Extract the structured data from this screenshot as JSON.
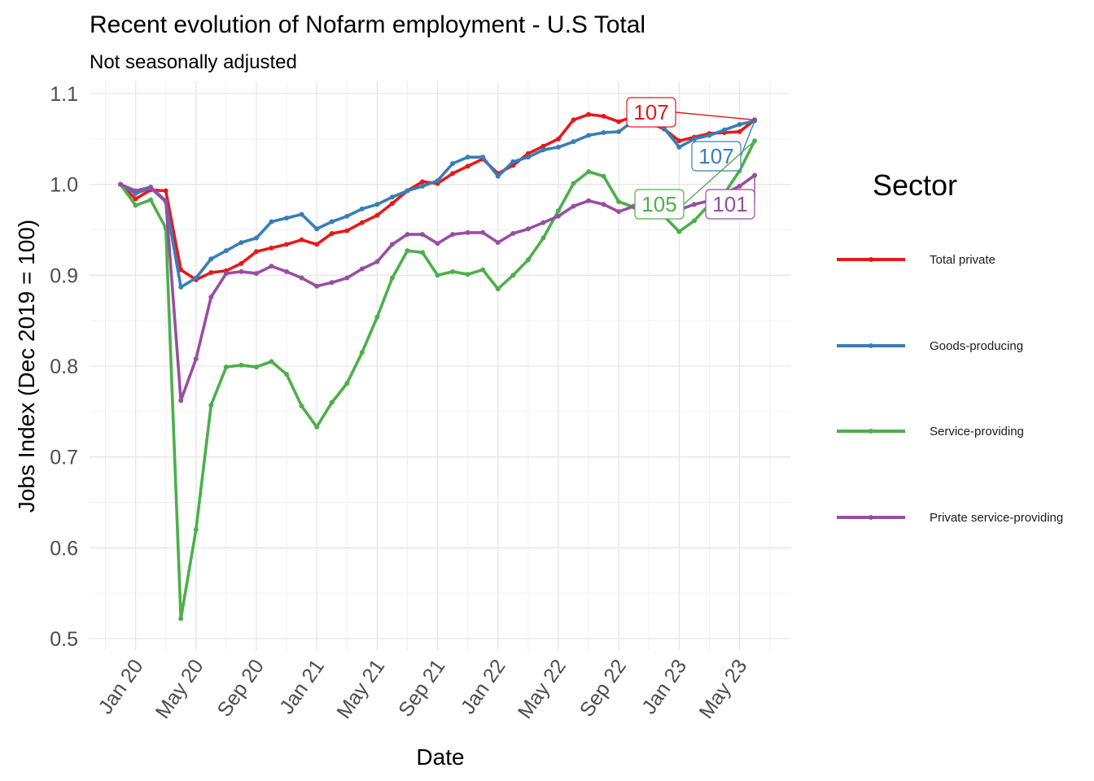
{
  "chart_data": {
    "type": "line",
    "title": "Recent evolution of Nofarm employment - U.S Total",
    "subtitle": "Not seasonally adjusted",
    "xlabel": "Date",
    "ylabel": "Jobs Index (Dec 2019 = 100)",
    "ylim": [
      0.5,
      1.1
    ],
    "yticks": [
      {
        "value": 0.5,
        "label": "0.5"
      },
      {
        "value": 0.6,
        "label": "0.6"
      },
      {
        "value": 0.7,
        "label": "0.7"
      },
      {
        "value": 0.8,
        "label": "0.8"
      },
      {
        "value": 0.9,
        "label": "0.9"
      },
      {
        "value": 1.0,
        "label": "1.0"
      },
      {
        "value": 1.1,
        "label": "1.1"
      }
    ],
    "xlim": [
      "2019-11",
      "2023-08"
    ],
    "xticks": [
      {
        "date": "2020-01",
        "label": "Jan 20"
      },
      {
        "date": "2020-05",
        "label": "May 20"
      },
      {
        "date": "2020-09",
        "label": "Sep 20"
      },
      {
        "date": "2021-01",
        "label": "Jan 21"
      },
      {
        "date": "2021-05",
        "label": "May 21"
      },
      {
        "date": "2021-09",
        "label": "Sep 21"
      },
      {
        "date": "2022-01",
        "label": "Jan 22"
      },
      {
        "date": "2022-05",
        "label": "May 22"
      },
      {
        "date": "2022-09",
        "label": "Sep 22"
      },
      {
        "date": "2023-01",
        "label": "Jan 23"
      },
      {
        "date": "2023-05",
        "label": "May 23"
      }
    ],
    "grid": true,
    "legend": {
      "title": "Sector",
      "position": "right"
    },
    "x": [
      "2019-12",
      "2020-01",
      "2020-02",
      "2020-03",
      "2020-04",
      "2020-05",
      "2020-06",
      "2020-07",
      "2020-08",
      "2020-09",
      "2020-10",
      "2020-11",
      "2020-12",
      "2021-01",
      "2021-02",
      "2021-03",
      "2021-04",
      "2021-05",
      "2021-06",
      "2021-07",
      "2021-08",
      "2021-09",
      "2021-10",
      "2021-11",
      "2021-12",
      "2022-01",
      "2022-02",
      "2022-03",
      "2022-04",
      "2022-05",
      "2022-06",
      "2022-07",
      "2022-08",
      "2022-09",
      "2022-10",
      "2022-11",
      "2022-12",
      "2023-01",
      "2023-02",
      "2023-03",
      "2023-04",
      "2023-05",
      "2023-06"
    ],
    "series": [
      {
        "name": "Total private",
        "color": "#E41A1C",
        "end_label": "107",
        "values": [
          1.0,
          0.984,
          0.994,
          0.993,
          0.906,
          0.895,
          0.903,
          0.905,
          0.913,
          0.926,
          0.93,
          0.934,
          0.939,
          0.934,
          0.946,
          0.949,
          0.958,
          0.966,
          0.979,
          0.993,
          1.003,
          1.001,
          1.012,
          1.02,
          1.028,
          1.012,
          1.021,
          1.034,
          1.042,
          1.05,
          1.071,
          1.077,
          1.075,
          1.069,
          1.075,
          1.068,
          1.061,
          1.048,
          1.052,
          1.056,
          1.057,
          1.058,
          1.071
        ]
      },
      {
        "name": "Goods-producing",
        "color": "#377EB8",
        "end_label": "107",
        "values": [
          1.0,
          0.99,
          0.996,
          0.981,
          0.887,
          0.897,
          0.918,
          0.927,
          0.936,
          0.941,
          0.959,
          0.963,
          0.967,
          0.951,
          0.959,
          0.965,
          0.973,
          0.978,
          0.986,
          0.993,
          0.998,
          1.004,
          1.023,
          1.03,
          1.03,
          1.009,
          1.025,
          1.03,
          1.038,
          1.041,
          1.047,
          1.054,
          1.057,
          1.058,
          1.07,
          1.072,
          1.062,
          1.041,
          1.05,
          1.054,
          1.06,
          1.066,
          1.07
        ]
      },
      {
        "name": "Service-providing",
        "color": "#4DAF4A",
        "end_label": "105",
        "values": [
          1.0,
          0.977,
          0.983,
          0.952,
          0.522,
          0.62,
          0.757,
          0.799,
          0.801,
          0.799,
          0.805,
          0.791,
          0.756,
          0.733,
          0.76,
          0.781,
          0.815,
          0.854,
          0.897,
          0.927,
          0.925,
          0.9,
          0.904,
          0.901,
          0.906,
          0.885,
          0.9,
          0.917,
          0.941,
          0.971,
          1.001,
          1.014,
          1.009,
          0.981,
          0.975,
          0.97,
          0.965,
          0.948,
          0.96,
          0.978,
          0.99,
          1.015,
          1.048
        ]
      },
      {
        "name": "Private service-providing",
        "color": "#984EA3",
        "end_label": "101",
        "values": [
          1.0,
          0.993,
          0.997,
          0.982,
          0.762,
          0.808,
          0.876,
          0.902,
          0.904,
          0.902,
          0.91,
          0.904,
          0.897,
          0.888,
          0.892,
          0.897,
          0.907,
          0.915,
          0.934,
          0.945,
          0.945,
          0.935,
          0.945,
          0.947,
          0.947,
          0.936,
          0.946,
          0.951,
          0.958,
          0.965,
          0.976,
          0.982,
          0.978,
          0.97,
          0.976,
          0.978,
          0.975,
          0.972,
          0.978,
          0.982,
          0.99,
          0.998,
          1.01
        ]
      }
    ]
  }
}
